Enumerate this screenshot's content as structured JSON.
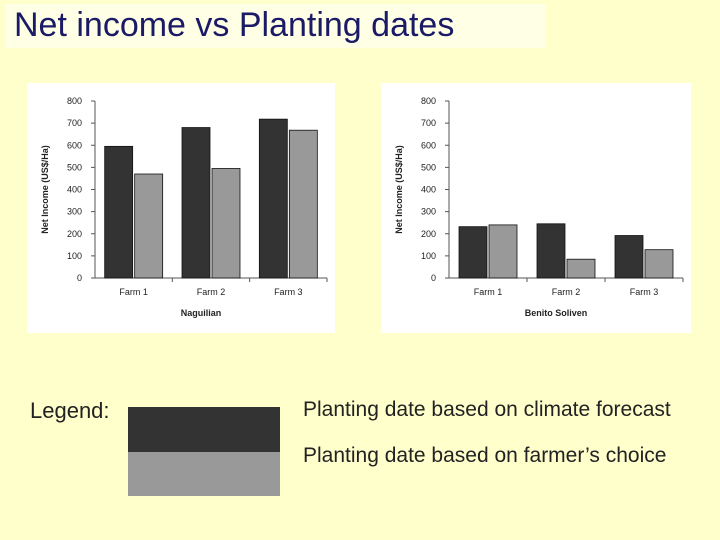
{
  "slide": {
    "title": "Net income vs Planting dates"
  },
  "legend": {
    "label": "Legend:",
    "items": [
      {
        "text": "Planting date based on climate forecast",
        "color": "#333333"
      },
      {
        "text": "Planting date based on farmer’s choice",
        "color": "#999999"
      }
    ]
  },
  "chart_data": [
    {
      "type": "bar",
      "location": "Naguilian",
      "ylabel": "Net Income (US$/Ha)",
      "xlabel": "Naguilian",
      "categories": [
        "Farm 1",
        "Farm 2",
        "Farm 3"
      ],
      "yticks": [
        "0",
        "100",
        "200",
        "300",
        "400",
        "500",
        "600",
        "700",
        "800"
      ],
      "ylim": [
        0,
        800
      ],
      "series": [
        {
          "values": [
            595,
            680,
            718
          ],
          "color": "#333333"
        },
        {
          "values": [
            470,
            495,
            668
          ],
          "color": "#999999"
        }
      ]
    },
    {
      "type": "bar",
      "location": "Benito Soliven",
      "ylabel": "Net Income (US$/Ha)",
      "xlabel": "Benito Soliven",
      "categories": [
        "Farm 1",
        "Farm 2",
        "Farm 3"
      ],
      "yticks": [
        "0",
        "100",
        "200",
        "300",
        "400",
        "500",
        "600",
        "700",
        "800"
      ],
      "ylim": [
        0,
        800
      ],
      "series": [
        {
          "values": [
            232,
            245,
            192
          ],
          "color": "#333333"
        },
        {
          "values": [
            240,
            85,
            128
          ],
          "color": "#999999"
        }
      ]
    }
  ]
}
